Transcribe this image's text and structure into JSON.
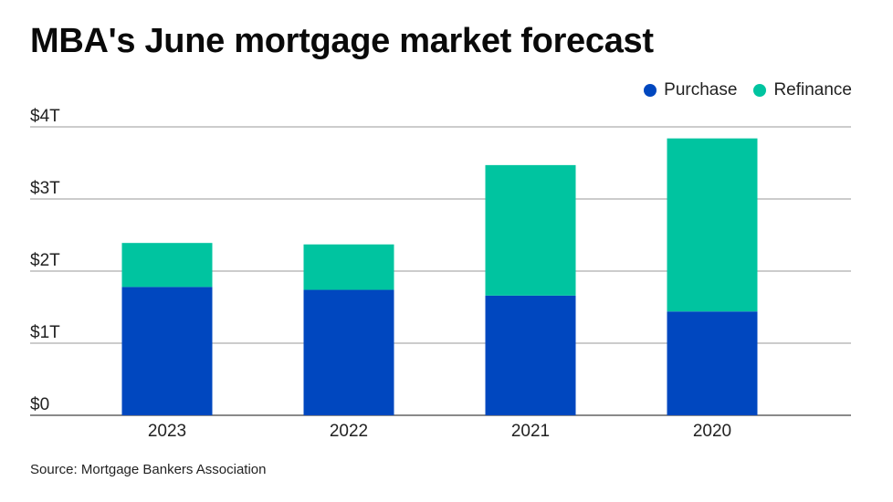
{
  "title": "MBA's June mortgage market forecast",
  "source": "Source: Mortgage Bankers Association",
  "legend": {
    "purchase": {
      "label": "Purchase",
      "color": "#0047bf"
    },
    "refinance": {
      "label": "Refinance",
      "color": "#00c4a0"
    }
  },
  "chart_data": {
    "type": "bar",
    "stacked": true,
    "title": "MBA's June mortgage market forecast",
    "xlabel": "",
    "ylabel": "",
    "ylim": [
      0,
      4
    ],
    "yticks": [
      {
        "value": 0,
        "label": "$0"
      },
      {
        "value": 1,
        "label": "$1T"
      },
      {
        "value": 2,
        "label": "$2T"
      },
      {
        "value": 3,
        "label": "$3T"
      },
      {
        "value": 4,
        "label": "$4T"
      }
    ],
    "categories": [
      "2023",
      "2022",
      "2021",
      "2020"
    ],
    "series": [
      {
        "name": "Purchase",
        "color": "#0047bf",
        "values": [
          1.78,
          1.74,
          1.66,
          1.44
        ]
      },
      {
        "name": "Refinance",
        "color": "#00c4a0",
        "values": [
          0.61,
          0.63,
          1.81,
          2.4
        ]
      }
    ],
    "legend_position": "top-right"
  }
}
